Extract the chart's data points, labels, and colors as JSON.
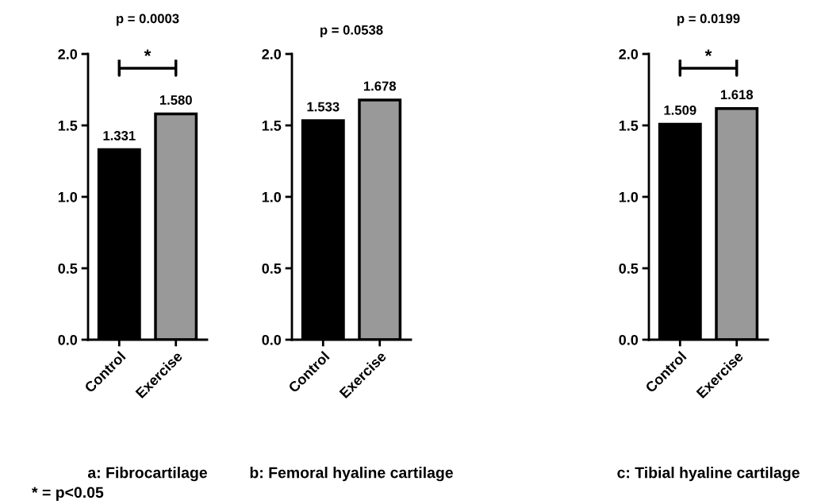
{
  "chart_data": [
    {
      "type": "bar",
      "title": "a: Fibrocartilage",
      "categories": [
        "Control",
        "Exercise"
      ],
      "values": [
        1.331,
        1.58
      ],
      "value_labels": [
        "1.331",
        "1.580"
      ],
      "colors": [
        "#000000",
        "#999999"
      ],
      "ylim": [
        0,
        2.0
      ],
      "yticks": [
        {
          "value": 0,
          "label": "0.0"
        },
        {
          "value": 0.5,
          "label": "0.5"
        },
        {
          "value": 1.0,
          "label": "1.0"
        },
        {
          "value": 1.5,
          "label": "1.5"
        },
        {
          "value": 2.0,
          "label": "2.0"
        }
      ],
      "grid": false,
      "legend": false,
      "annotations": [
        "p = 0.0003",
        "*",
        "* = p<0.05"
      ]
    },
    {
      "type": "bar",
      "title": "b: Femoral hyaline cartilage",
      "categories": [
        "Control",
        "Exercise"
      ],
      "values": [
        1.533,
        1.678
      ],
      "value_labels": [
        "1.533",
        "1.678"
      ],
      "colors": [
        "#000000",
        "#999999"
      ],
      "ylim": [
        0,
        2.0
      ],
      "yticks": [
        {
          "value": 0,
          "label": "0.0"
        },
        {
          "value": 0.5,
          "label": "0.5"
        },
        {
          "value": 1.0,
          "label": "1.0"
        },
        {
          "value": 1.5,
          "label": "1.5"
        },
        {
          "value": 2.0,
          "label": "2.0"
        }
      ],
      "grid": false,
      "legend": false,
      "annotations": [
        "p = 0.0538"
      ]
    },
    {
      "type": "bar",
      "title": "c: Tibial hyaline cartilage",
      "categories": [
        "Control",
        "Exercise"
      ],
      "values": [
        1.509,
        1.618
      ],
      "value_labels": [
        "1.509",
        "1.618"
      ],
      "colors": [
        "#000000",
        "#999999"
      ],
      "ylim": [
        0,
        2.0
      ],
      "yticks": [
        {
          "value": 0,
          "label": "0.0"
        },
        {
          "value": 0.5,
          "label": "0.5"
        },
        {
          "value": 1.0,
          "label": "1.0"
        },
        {
          "value": 1.5,
          "label": "1.5"
        },
        {
          "value": 2.0,
          "label": "2.0"
        }
      ],
      "grid": false,
      "legend": false,
      "annotations": [
        "p = 0.0199",
        "*"
      ]
    }
  ]
}
